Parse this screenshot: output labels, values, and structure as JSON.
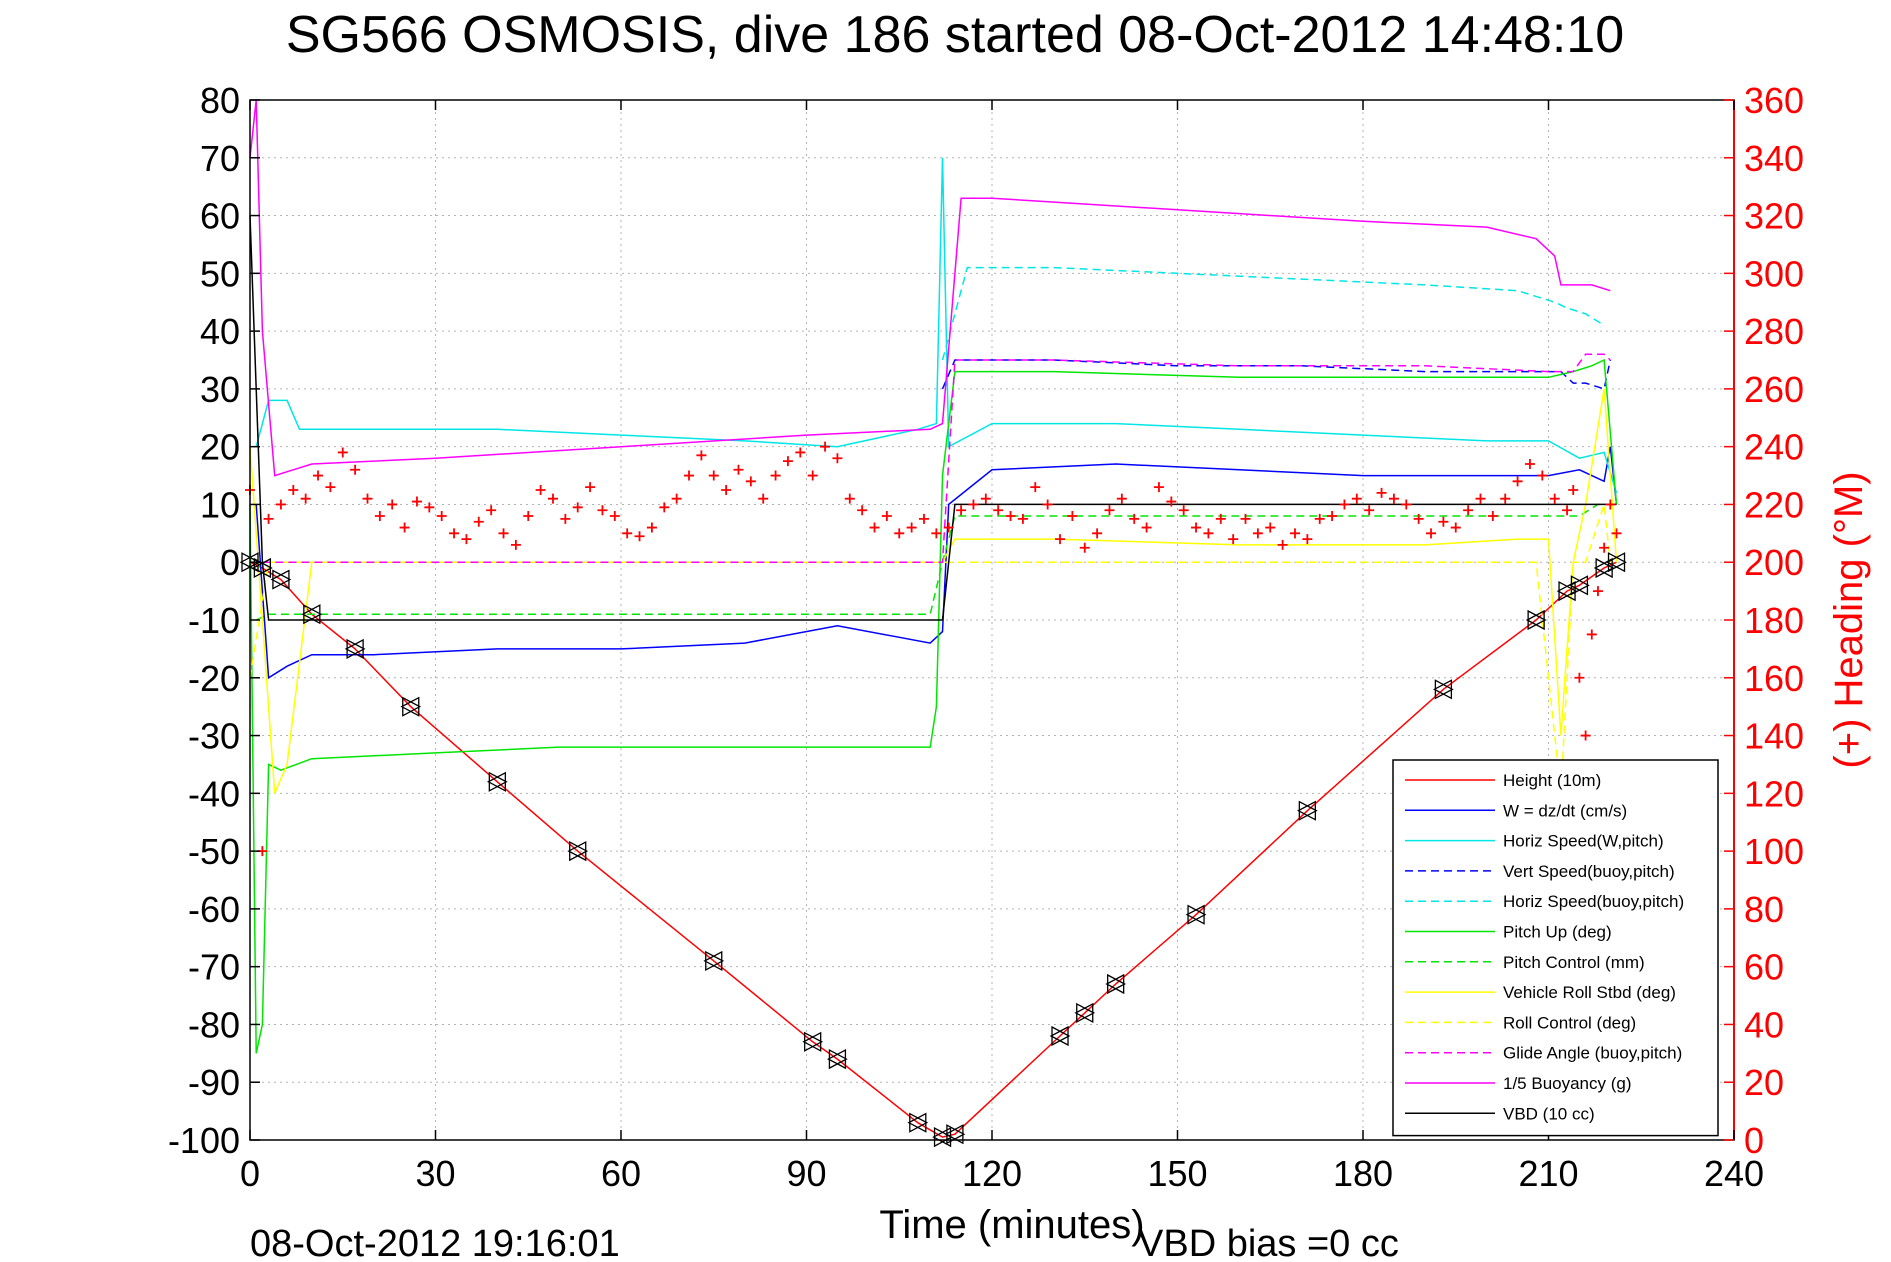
{
  "chart_data": {
    "type": "line",
    "title": "SG566 OSMOSIS, dive 186 started 08-Oct-2012 14:48:10",
    "xlabel": "Time (minutes)",
    "ylabel": "",
    "y2label": "(+) Heading (°M)",
    "xlim": [
      0,
      240
    ],
    "ylim": [
      -100,
      80
    ],
    "y2lim": [
      0,
      360
    ],
    "x_ticks": [
      0,
      30,
      60,
      90,
      120,
      150,
      180,
      210,
      240
    ],
    "y_ticks": [
      80,
      70,
      60,
      50,
      40,
      30,
      20,
      10,
      0,
      -10,
      -20,
      -30,
      -40,
      -50,
      -60,
      -70,
      -80,
      -90,
      -100
    ],
    "y2_ticks": [
      360,
      340,
      320,
      300,
      280,
      260,
      240,
      220,
      200,
      180,
      160,
      140,
      120,
      100,
      80,
      60,
      40,
      20,
      0
    ],
    "grid": true,
    "legend_position": "bottom-right",
    "footer_left": "08-Oct-2012 19:16:01",
    "footer_right": "VBD bias =0 cc",
    "colors": {
      "axis_left": "#000000",
      "axis_right": "#ff0000",
      "grid": "#b4b4b4"
    },
    "series": [
      {
        "name": "Height (10m)",
        "color": "#ff0000",
        "style": "solid",
        "x": [
          0,
          2,
          5,
          10,
          17,
          26,
          40,
          53,
          75,
          91,
          95,
          108,
          112,
          114,
          131,
          135,
          140,
          153,
          171,
          193,
          208,
          213,
          215,
          219,
          221
        ],
        "y": [
          0,
          -1,
          -3,
          -9,
          -15,
          -25,
          -38,
          -50,
          -69,
          -83,
          -86,
          -97,
          -99.5,
          -99,
          -82,
          -78,
          -73,
          -61,
          -43,
          -22,
          -10,
          -5,
          -4,
          -1,
          0
        ]
      },
      {
        "name": "W = dz/dt (cm/s)",
        "color": "#0000ff",
        "style": "solid",
        "x": [
          1,
          3,
          6,
          10,
          20,
          40,
          60,
          80,
          95,
          110,
          112,
          113,
          120,
          140,
          160,
          180,
          200,
          210,
          215,
          219,
          220,
          221
        ],
        "y": [
          10,
          -20,
          -18,
          -16,
          -16,
          -15,
          -15,
          -14,
          -11,
          -14,
          -12,
          10,
          16,
          17,
          16,
          15,
          15,
          15,
          16,
          14,
          20,
          10
        ]
      },
      {
        "name": "Horiz Speed(W,pitch)",
        "color": "#00e6e6",
        "style": "solid",
        "x": [
          1,
          3,
          6,
          8,
          20,
          40,
          60,
          80,
          95,
          108,
          111,
          112,
          113,
          120,
          140,
          160,
          180,
          200,
          210,
          215,
          219,
          221
        ],
        "y": [
          20,
          28,
          28,
          23,
          23,
          23,
          22,
          21,
          20,
          23,
          24,
          70,
          20,
          24,
          24,
          23,
          22,
          21,
          21,
          18,
          19,
          12
        ]
      },
      {
        "name": "Vert Speed(buoy,pitch)",
        "color": "#0000ff",
        "style": "dashed",
        "x": [
          112,
          114,
          130,
          150,
          170,
          190,
          205,
          212,
          214,
          216,
          219,
          220
        ],
        "y": [
          30,
          35,
          35,
          34,
          34,
          33,
          33,
          33,
          31,
          31,
          30,
          35
        ]
      },
      {
        "name": "Horiz Speed(buoy,pitch)",
        "color": "#00e6e6",
        "style": "dashed",
        "x": [
          112,
          116,
          130,
          150,
          170,
          190,
          205,
          211,
          213,
          216,
          219
        ],
        "y": [
          35,
          51,
          51,
          50,
          49,
          48,
          47,
          45,
          44,
          43,
          41
        ]
      },
      {
        "name": "Pitch Up (deg)",
        "color": "#00e600",
        "style": "solid",
        "x": [
          0,
          1,
          2,
          3,
          5,
          10,
          30,
          50,
          70,
          90,
          100,
          110,
          111,
          112,
          114,
          130,
          160,
          190,
          210,
          214,
          217,
          219,
          221
        ],
        "y": [
          10,
          -85,
          -80,
          -35,
          -36,
          -34,
          -33,
          -32,
          -32,
          -32,
          -32,
          -32,
          -25,
          15,
          33,
          33,
          32,
          32,
          32,
          33,
          34,
          35,
          10
        ]
      },
      {
        "name": "Pitch Control (mm)",
        "color": "#00e600",
        "style": "dashed",
        "x": [
          1,
          3,
          110,
          112,
          114,
          215,
          218,
          220
        ],
        "y": [
          -10,
          -9,
          -9,
          0,
          8,
          8,
          10,
          10
        ]
      },
      {
        "name": "Vehicle Roll Stbd (deg)",
        "color": "#ffff00",
        "style": "solid",
        "x": [
          0,
          2,
          4,
          6,
          10,
          30,
          60,
          90,
          110,
          112,
          114,
          130,
          160,
          190,
          205,
          210,
          212,
          214,
          216,
          219,
          221
        ],
        "y": [
          20,
          -10,
          -40,
          -35,
          0,
          0,
          0,
          0,
          0,
          0,
          4,
          4,
          3,
          3,
          4,
          4,
          -30,
          0,
          10,
          30,
          0
        ]
      },
      {
        "name": "Roll Control (deg)",
        "color": "#ffff00",
        "style": "dashed",
        "x": [
          0,
          3,
          5,
          10,
          20,
          27,
          40,
          60,
          90,
          108,
          112,
          114,
          130,
          160,
          190,
          208,
          212,
          214,
          216,
          219,
          220
        ],
        "y": [
          -20,
          0,
          0,
          0,
          0,
          0,
          0,
          0,
          0,
          0,
          0,
          0,
          0,
          0,
          0,
          0,
          -40,
          0,
          0,
          10,
          0
        ]
      },
      {
        "name": "Glide Angle (buoy,pitch)",
        "color": "#ff00ff",
        "style": "dashed",
        "x": [
          2,
          3,
          110,
          112,
          114,
          130,
          160,
          190,
          210,
          214,
          216,
          219,
          220
        ],
        "y": [
          0,
          0,
          0,
          0,
          35,
          35,
          34,
          34,
          33,
          33,
          36,
          36,
          35
        ]
      },
      {
        "name": "1/5 Buoyancy (g)",
        "color": "#ff00ff",
        "style": "solid",
        "x": [
          0,
          1,
          2,
          4,
          7,
          10,
          30,
          60,
          90,
          110,
          112,
          115,
          120,
          150,
          180,
          200,
          208,
          211,
          212,
          214,
          217,
          220
        ],
        "y": [
          70,
          80,
          40,
          15,
          16,
          17,
          18,
          20,
          22,
          23,
          24,
          63,
          63,
          61,
          59,
          58,
          56,
          53,
          48,
          48,
          48,
          47
        ]
      },
      {
        "name": "VBD (10 cc)",
        "color": "#000000",
        "style": "solid",
        "x": [
          0,
          1,
          2,
          3,
          110,
          112,
          114,
          218,
          220,
          221
        ],
        "y": [
          60,
          30,
          0,
          -10,
          -10,
          -10,
          10,
          10,
          10,
          10
        ]
      }
    ],
    "heading_series": {
      "name": "(+) Heading (°M)",
      "color": "#ff0000",
      "marker": "+",
      "x": [
        0,
        2,
        3,
        5,
        7,
        9,
        11,
        13,
        15,
        17,
        19,
        21,
        23,
        25,
        27,
        29,
        31,
        33,
        35,
        37,
        39,
        41,
        43,
        45,
        47,
        49,
        51,
        53,
        55,
        57,
        59,
        61,
        63,
        65,
        67,
        69,
        71,
        73,
        75,
        77,
        79,
        81,
        83,
        85,
        87,
        89,
        91,
        93,
        95,
        97,
        99,
        101,
        103,
        105,
        107,
        109,
        111,
        113,
        115,
        117,
        119,
        121,
        123,
        125,
        127,
        129,
        131,
        133,
        135,
        137,
        139,
        141,
        143,
        145,
        147,
        149,
        151,
        153,
        155,
        157,
        159,
        161,
        163,
        165,
        167,
        169,
        171,
        173,
        175,
        177,
        179,
        181,
        183,
        185,
        187,
        189,
        191,
        193,
        195,
        197,
        199,
        201,
        203,
        205,
        207,
        209,
        211,
        213,
        214,
        215,
        216,
        217,
        218,
        219,
        220,
        221
      ],
      "y": [
        225,
        100,
        215,
        220,
        225,
        222,
        230,
        226,
        238,
        232,
        222,
        216,
        220,
        212,
        221,
        219,
        216,
        210,
        208,
        214,
        218,
        210,
        206,
        216,
        225,
        222,
        215,
        219,
        226,
        218,
        216,
        210,
        209,
        212,
        219,
        222,
        230,
        237,
        230,
        225,
        232,
        228,
        222,
        230,
        235,
        238,
        230,
        240,
        236,
        222,
        218,
        212,
        216,
        210,
        212,
        215,
        210,
        212,
        218,
        220,
        222,
        218,
        216,
        215,
        226,
        220,
        208,
        216,
        205,
        210,
        218,
        222,
        215,
        212,
        226,
        221,
        218,
        212,
        210,
        215,
        208,
        215,
        210,
        212,
        206,
        210,
        208,
        215,
        216,
        220,
        222,
        218,
        224,
        222,
        220,
        215,
        210,
        214,
        212,
        218,
        222,
        216,
        222,
        228,
        234,
        230,
        222,
        218,
        225,
        160,
        140,
        175,
        190,
        205,
        220,
        210
      ]
    }
  }
}
